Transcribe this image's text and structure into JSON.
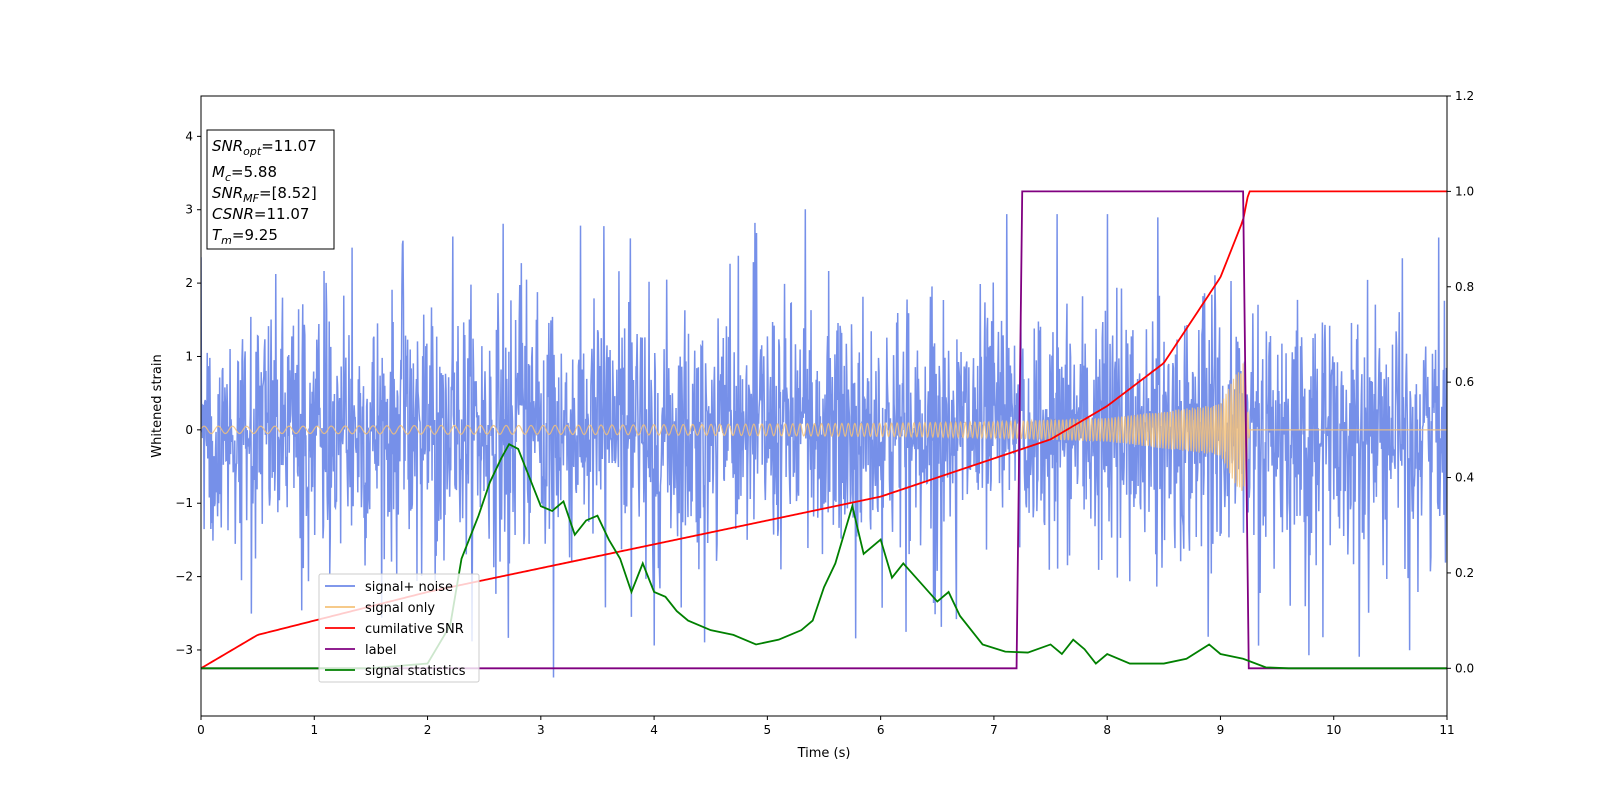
{
  "chart_data": {
    "type": "line",
    "title": "",
    "xlabel": "Time (s)",
    "ylabel": "Whitened strain",
    "xlim": [
      0,
      11
    ],
    "ylim": [
      -3.9,
      4.55
    ],
    "y2lim": [
      -0.1,
      1.2
    ],
    "x_ticks": [
      "0",
      "1",
      "2",
      "3",
      "4",
      "5",
      "6",
      "7",
      "8",
      "9",
      "10",
      "11"
    ],
    "y_ticks": [
      "−3",
      "−2",
      "−1",
      "0",
      "1",
      "2",
      "3",
      "4"
    ],
    "y2_ticks": [
      "0.0",
      "0.2",
      "0.4",
      "0.6",
      "0.8",
      "1.0",
      "1.2"
    ],
    "grid": false,
    "legend_position": "lower-left",
    "info_box": {
      "snr_opt": "=11.07",
      "mc": "=5.88",
      "snr_mf": "=[8.52]",
      "csnr": "=11.07",
      "tm": "=9.25"
    },
    "series": [
      {
        "name": "signal+ noise",
        "axis": "left",
        "color": "#6f8ae8",
        "description": "whitened noise plus signal, amplitude mostly within ±2.5 with spikes to about 3.4 and -3.5",
        "envelope": {
          "x": [
            0,
            1,
            2,
            3,
            4,
            5,
            6,
            7,
            8,
            9,
            10,
            11
          ],
          "upper": [
            2.4,
            2.5,
            2.6,
            3.0,
            2.7,
            2.9,
            3.4,
            3.0,
            3.0,
            2.9,
            2.9,
            2.6
          ],
          "lower": [
            -2.6,
            -2.5,
            -2.6,
            -3.5,
            -3.0,
            -2.9,
            -2.9,
            -2.5,
            -2.7,
            -2.9,
            -3.2,
            -3.0
          ]
        }
      },
      {
        "name": "signal only",
        "axis": "left",
        "color": "#f5c27a",
        "description": "chirp whose amplitude grows to about 0.95 at merger near t=9.25 s then ends",
        "envelope": {
          "x": [
            0,
            1,
            2,
            3,
            4,
            5,
            6,
            7,
            8,
            9,
            9.2,
            9.26,
            11
          ],
          "amplitude": [
            0.05,
            0.05,
            0.06,
            0.06,
            0.07,
            0.08,
            0.09,
            0.11,
            0.16,
            0.35,
            0.95,
            0.0,
            0.0
          ]
        }
      },
      {
        "name": "cumilative SNR",
        "axis": "right",
        "color": "#ff0000",
        "x": [
          0,
          0.5,
          1,
          2,
          3,
          4,
          5,
          6,
          7,
          7.5,
          8,
          8.5,
          9,
          9.2,
          9.25,
          11
        ],
        "values": [
          0.0,
          0.07,
          0.1,
          0.16,
          0.21,
          0.26,
          0.31,
          0.36,
          0.44,
          0.48,
          0.55,
          0.64,
          0.82,
          0.94,
          1.0,
          1.0
        ]
      },
      {
        "name": "label",
        "axis": "right",
        "color": "#800080",
        "x": [
          0,
          7.2,
          7.25,
          9.2,
          9.25,
          11
        ],
        "values": [
          0.0,
          0.0,
          1.0,
          1.0,
          0.0,
          0.0
        ]
      },
      {
        "name": "signal statistics",
        "axis": "right",
        "color": "#008000",
        "x": [
          0,
          1.5,
          2.0,
          2.2,
          2.3,
          2.45,
          2.55,
          2.65,
          2.72,
          2.8,
          2.9,
          3.0,
          3.1,
          3.2,
          3.3,
          3.4,
          3.5,
          3.6,
          3.7,
          3.8,
          3.9,
          4.0,
          4.1,
          4.2,
          4.3,
          4.5,
          4.7,
          4.9,
          5.1,
          5.3,
          5.4,
          5.5,
          5.6,
          5.75,
          5.85,
          6.0,
          6.1,
          6.2,
          6.35,
          6.5,
          6.6,
          6.7,
          6.9,
          7.1,
          7.3,
          7.5,
          7.6,
          7.7,
          7.8,
          7.9,
          8.0,
          8.2,
          8.5,
          8.7,
          8.9,
          9.0,
          9.2,
          9.4,
          9.6,
          10.0,
          11.0
        ],
        "values": [
          0.0,
          0.0,
          0.01,
          0.09,
          0.23,
          0.32,
          0.39,
          0.44,
          0.47,
          0.46,
          0.4,
          0.34,
          0.33,
          0.35,
          0.28,
          0.31,
          0.32,
          0.27,
          0.23,
          0.16,
          0.22,
          0.16,
          0.15,
          0.12,
          0.1,
          0.08,
          0.07,
          0.05,
          0.06,
          0.08,
          0.1,
          0.17,
          0.22,
          0.34,
          0.24,
          0.27,
          0.19,
          0.22,
          0.18,
          0.14,
          0.16,
          0.11,
          0.05,
          0.035,
          0.033,
          0.05,
          0.03,
          0.06,
          0.04,
          0.01,
          0.03,
          0.01,
          0.01,
          0.02,
          0.05,
          0.03,
          0.02,
          0.002,
          0.0,
          0.0,
          0.0
        ]
      }
    ]
  }
}
